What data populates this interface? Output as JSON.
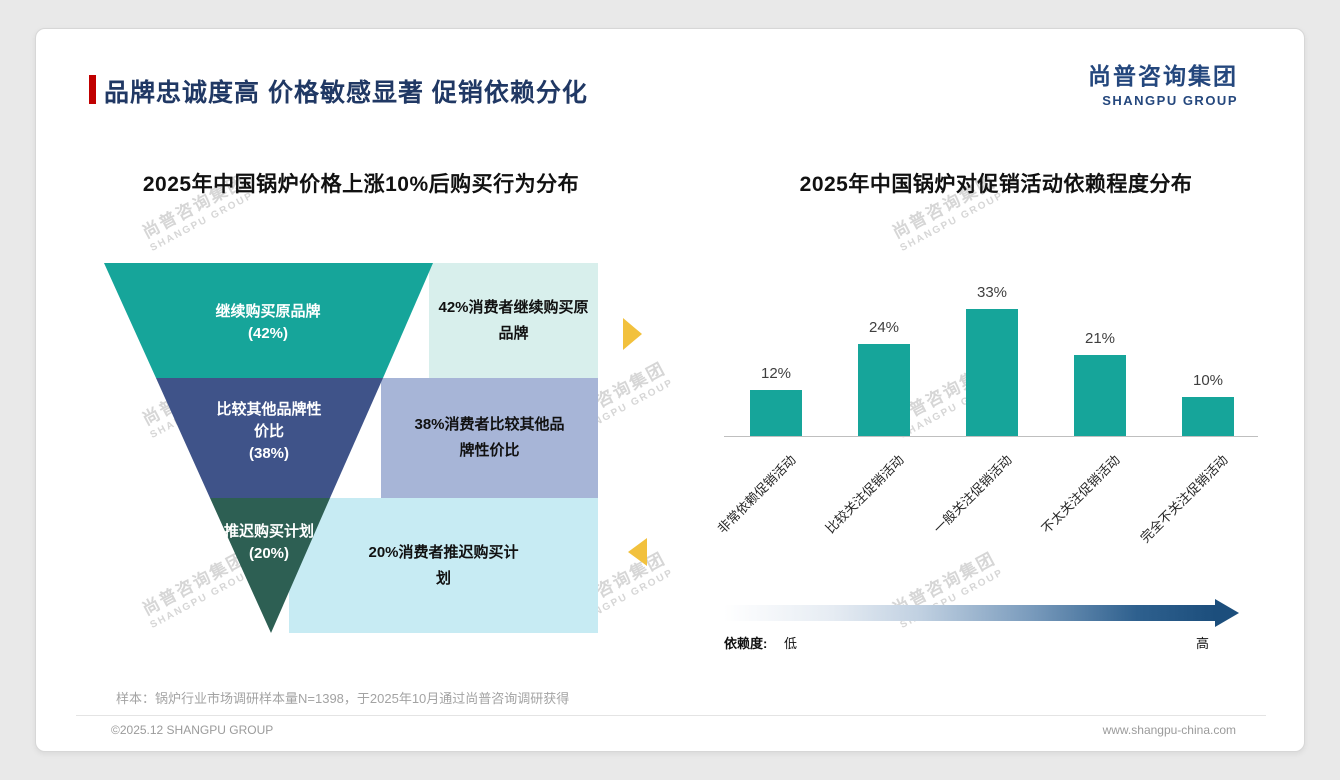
{
  "page": {
    "slide_title": "品牌忠诚度高 价格敏感显著 促销依赖分化",
    "logo": {
      "cn": "尚普咨询集团",
      "en": "SHANGPU GROUP"
    },
    "watermark": {
      "cn": "尚普咨询集团",
      "en": "SHANGPU GROUP"
    },
    "sample_note": "样本：锅炉行业市场调研样本量N=1398，于2025年10月通过尚普咨询调研获得",
    "footer": {
      "left": "©2025.12 SHANGPU GROUP",
      "right": "www.shangpu-china.com"
    },
    "colors": {
      "accent_red": "#c00000",
      "brand_navy": "#24477d",
      "title_navy": "#203864"
    }
  },
  "funnel_chart": {
    "title": "2025年中国锅炉价格上涨10%后购买行为分布",
    "arrow_color": "#f2c13d",
    "segments": [
      {
        "label": "继续购买原品牌",
        "value_label": "(42%)",
        "value": 42,
        "color": "#16a59a",
        "desc": "42%消费者继续购买原品牌",
        "desc_bg": "#d8efec"
      },
      {
        "label": "比较其他品牌性价比",
        "value_label": "(38%)",
        "value": 38,
        "color": "#3f5389",
        "desc": "38%消费者比较其他品牌性价比",
        "desc_bg": "#a7b5d7"
      },
      {
        "label": "推迟购买计划",
        "value_label": "(20%)",
        "value": 20,
        "color": "#2d5f53",
        "desc": "20%消费者推迟购买计划",
        "desc_bg": "#c7ebf3"
      }
    ]
  },
  "bar_chart": {
    "title": "2025年中国锅炉对促销活动依赖程度分布",
    "bar_color": "#16a59a",
    "scale": {
      "label": "依赖度:",
      "low": "低",
      "high": "高"
    }
  },
  "chart_data": [
    {
      "type": "funnel",
      "title": "2025年中国锅炉价格上涨10%后购买行为分布",
      "categories": [
        "继续购买原品牌",
        "比较其他品牌性价比",
        "推迟购买计划"
      ],
      "values": [
        42,
        38,
        20
      ],
      "unit": "%",
      "annotations": [
        "42%消费者继续购买原品牌",
        "38%消费者比较其他品牌性价比",
        "20%消费者推迟购买计划"
      ]
    },
    {
      "type": "bar",
      "title": "2025年中国锅炉对促销活动依赖程度分布",
      "categories": [
        "非常依赖促销活动",
        "比较关注促销活动",
        "一般关注促销活动",
        "不太关注促销活动",
        "完全不关注促销活动"
      ],
      "values": [
        12,
        24,
        33,
        21,
        10
      ],
      "value_labels": [
        "12%",
        "24%",
        "33%",
        "21%",
        "10%"
      ],
      "xlabel": "",
      "ylabel": "",
      "ylim": [
        0,
        35
      ],
      "grid": false,
      "legend": null,
      "dependency_scale": {
        "label": "依赖度:",
        "low": "低",
        "high": "高"
      }
    }
  ]
}
